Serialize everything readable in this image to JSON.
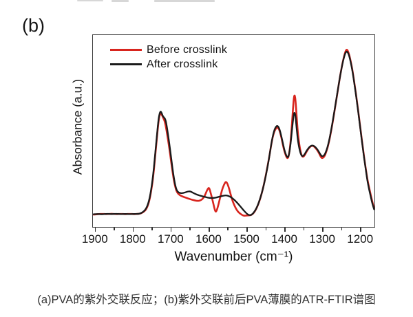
{
  "panel_label": "(b)",
  "caption": "(a)PVA的紫外交联反应；(b)紫外交联前后PVA薄膜的ATR-FTIR谱图",
  "colors": {
    "before_crosslink": "#d8251e",
    "after_crosslink": "#1a1a1a",
    "axis": "#3c3c3c"
  },
  "chart_data": {
    "type": "line",
    "title": "",
    "xlabel": "Wavenumber (cm⁻¹)",
    "ylabel": "Absorbance (a.u.)",
    "x_axis_reversed": true,
    "x_range": [
      1905,
      1164
    ],
    "ylim": [
      -0.075,
      1.087
    ],
    "grid": false,
    "legend_position": "top-left",
    "x_ticks": [
      1900,
      1800,
      1700,
      1600,
      1500,
      1400,
      1300,
      1200
    ],
    "x_minor_ticks": [
      1850,
      1750,
      1650,
      1550,
      1450,
      1350,
      1250
    ],
    "series": [
      {
        "name": "Before crosslink",
        "color": "#d8251e",
        "stroke_width": 2.6,
        "points": [
          [
            1903,
            0.0
          ],
          [
            1892,
            0.002
          ],
          [
            1880,
            0.004
          ],
          [
            1868,
            0.002
          ],
          [
            1856,
            0.005
          ],
          [
            1844,
            0.002
          ],
          [
            1832,
            0.004
          ],
          [
            1820,
            0.002
          ],
          [
            1808,
            0.004
          ],
          [
            1796,
            0.002
          ],
          [
            1788,
            0.004
          ],
          [
            1781,
            0.005
          ],
          [
            1773,
            0.013
          ],
          [
            1765,
            0.03
          ],
          [
            1758,
            0.068
          ],
          [
            1752,
            0.135
          ],
          [
            1747,
            0.215
          ],
          [
            1742,
            0.33
          ],
          [
            1737,
            0.455
          ],
          [
            1733,
            0.55
          ],
          [
            1730,
            0.6
          ],
          [
            1727,
            0.614
          ],
          [
            1724,
            0.606
          ],
          [
            1720,
            0.585
          ],
          [
            1716,
            0.565
          ],
          [
            1712,
            0.52
          ],
          [
            1707,
            0.45
          ],
          [
            1702,
            0.37
          ],
          [
            1697,
            0.285
          ],
          [
            1692,
            0.205
          ],
          [
            1687,
            0.155
          ],
          [
            1683,
            0.132
          ],
          [
            1678,
            0.12
          ],
          [
            1672,
            0.112
          ],
          [
            1665,
            0.106
          ],
          [
            1658,
            0.1
          ],
          [
            1650,
            0.094
          ],
          [
            1643,
            0.089
          ],
          [
            1636,
            0.085
          ],
          [
            1629,
            0.082
          ],
          [
            1622,
            0.085
          ],
          [
            1616,
            0.095
          ],
          [
            1611,
            0.112
          ],
          [
            1606,
            0.14
          ],
          [
            1602,
            0.158
          ],
          [
            1600,
            0.162
          ],
          [
            1598,
            0.155
          ],
          [
            1595,
            0.13
          ],
          [
            1591,
            0.095
          ],
          [
            1587,
            0.055
          ],
          [
            1584,
            0.027
          ],
          [
            1582,
            0.017
          ],
          [
            1580,
            0.02
          ],
          [
            1577,
            0.04
          ],
          [
            1573,
            0.075
          ],
          [
            1568,
            0.125
          ],
          [
            1563,
            0.165
          ],
          [
            1558,
            0.19
          ],
          [
            1555,
            0.199
          ],
          [
            1552,
            0.192
          ],
          [
            1548,
            0.168
          ],
          [
            1544,
            0.135
          ],
          [
            1540,
            0.1
          ],
          [
            1535,
            0.068
          ],
          [
            1530,
            0.042
          ],
          [
            1525,
            0.022
          ],
          [
            1519,
            0.008
          ],
          [
            1513,
            -0.002
          ],
          [
            1507,
            -0.008
          ],
          [
            1501,
            -0.006
          ],
          [
            1495,
            -0.005
          ],
          [
            1489,
            -0.004
          ],
          [
            1482,
            0.008
          ],
          [
            1474,
            0.038
          ],
          [
            1466,
            0.085
          ],
          [
            1458,
            0.15
          ],
          [
            1450,
            0.235
          ],
          [
            1442,
            0.333
          ],
          [
            1435,
            0.435
          ],
          [
            1429,
            0.495
          ],
          [
            1424,
            0.52
          ],
          [
            1419,
            0.53
          ],
          [
            1414,
            0.512
          ],
          [
            1409,
            0.468
          ],
          [
            1404,
            0.41
          ],
          [
            1399,
            0.368
          ],
          [
            1395,
            0.345
          ],
          [
            1392,
            0.34
          ],
          [
            1389,
            0.36
          ],
          [
            1385,
            0.43
          ],
          [
            1381,
            0.55
          ],
          [
            1378,
            0.655
          ],
          [
            1376,
            0.71
          ],
          [
            1374,
            0.726
          ],
          [
            1372,
            0.7
          ],
          [
            1369,
            0.6
          ],
          [
            1366,
            0.5
          ],
          [
            1362,
            0.425
          ],
          [
            1358,
            0.375
          ],
          [
            1354,
            0.348
          ],
          [
            1349,
            0.353
          ],
          [
            1343,
            0.38
          ],
          [
            1337,
            0.402
          ],
          [
            1331,
            0.415
          ],
          [
            1326,
            0.417
          ],
          [
            1321,
            0.408
          ],
          [
            1315,
            0.392
          ],
          [
            1309,
            0.368
          ],
          [
            1304,
            0.344
          ],
          [
            1300,
            0.341
          ],
          [
            1295,
            0.354
          ],
          [
            1290,
            0.385
          ],
          [
            1284,
            0.435
          ],
          [
            1278,
            0.505
          ],
          [
            1272,
            0.585
          ],
          [
            1266,
            0.672
          ],
          [
            1260,
            0.758
          ],
          [
            1254,
            0.845
          ],
          [
            1248,
            0.918
          ],
          [
            1243,
            0.968
          ],
          [
            1239,
            0.996
          ],
          [
            1236,
            1.0
          ],
          [
            1232,
            0.98
          ],
          [
            1228,
            0.945
          ],
          [
            1223,
            0.89
          ],
          [
            1218,
            0.815
          ],
          [
            1212,
            0.72
          ],
          [
            1206,
            0.615
          ],
          [
            1200,
            0.505
          ],
          [
            1194,
            0.395
          ],
          [
            1188,
            0.295
          ],
          [
            1183,
            0.218
          ],
          [
            1178,
            0.162
          ],
          [
            1173,
            0.112
          ],
          [
            1169,
            0.072
          ],
          [
            1165,
            0.04
          ]
        ]
      },
      {
        "name": "After crosslink",
        "color": "#1a1a1a",
        "stroke_width": 2.3,
        "points": [
          [
            1903,
            0.002
          ],
          [
            1892,
            0.004
          ],
          [
            1880,
            0.001
          ],
          [
            1868,
            0.005
          ],
          [
            1856,
            0.002
          ],
          [
            1844,
            0.005
          ],
          [
            1832,
            0.002
          ],
          [
            1820,
            0.004
          ],
          [
            1808,
            0.002
          ],
          [
            1796,
            0.004
          ],
          [
            1788,
            0.003
          ],
          [
            1781,
            0.006
          ],
          [
            1773,
            0.015
          ],
          [
            1765,
            0.035
          ],
          [
            1758,
            0.075
          ],
          [
            1752,
            0.145
          ],
          [
            1747,
            0.23
          ],
          [
            1742,
            0.345
          ],
          [
            1737,
            0.47
          ],
          [
            1733,
            0.565
          ],
          [
            1730,
            0.61
          ],
          [
            1727,
            0.627
          ],
          [
            1724,
            0.615
          ],
          [
            1721,
            0.596
          ],
          [
            1718,
            0.588
          ],
          [
            1714,
            0.576
          ],
          [
            1710,
            0.527
          ],
          [
            1705,
            0.45
          ],
          [
            1700,
            0.36
          ],
          [
            1695,
            0.27
          ],
          [
            1690,
            0.196
          ],
          [
            1686,
            0.156
          ],
          [
            1682,
            0.138
          ],
          [
            1677,
            0.131
          ],
          [
            1670,
            0.129
          ],
          [
            1663,
            0.133
          ],
          [
            1656,
            0.139
          ],
          [
            1650,
            0.141
          ],
          [
            1644,
            0.135
          ],
          [
            1637,
            0.126
          ],
          [
            1628,
            0.118
          ],
          [
            1618,
            0.111
          ],
          [
            1608,
            0.105
          ],
          [
            1598,
            0.1
          ],
          [
            1588,
            0.1
          ],
          [
            1578,
            0.104
          ],
          [
            1568,
            0.111
          ],
          [
            1560,
            0.115
          ],
          [
            1553,
            0.116
          ],
          [
            1546,
            0.111
          ],
          [
            1538,
            0.099
          ],
          [
            1529,
            0.081
          ],
          [
            1519,
            0.055
          ],
          [
            1509,
            0.027
          ],
          [
            1500,
            0.005
          ],
          [
            1494,
            -0.004
          ],
          [
            1488,
            -0.003
          ],
          [
            1481,
            0.013
          ],
          [
            1473,
            0.045
          ],
          [
            1465,
            0.095
          ],
          [
            1457,
            0.16
          ],
          [
            1449,
            0.245
          ],
          [
            1441,
            0.345
          ],
          [
            1434,
            0.45
          ],
          [
            1428,
            0.51
          ],
          [
            1423,
            0.533
          ],
          [
            1419,
            0.539
          ],
          [
            1414,
            0.52
          ],
          [
            1409,
            0.475
          ],
          [
            1404,
            0.42
          ],
          [
            1399,
            0.375
          ],
          [
            1395,
            0.352
          ],
          [
            1392,
            0.345
          ],
          [
            1389,
            0.36
          ],
          [
            1385,
            0.42
          ],
          [
            1381,
            0.51
          ],
          [
            1378,
            0.578
          ],
          [
            1376,
            0.612
          ],
          [
            1374,
            0.618
          ],
          [
            1372,
            0.6
          ],
          [
            1369,
            0.525
          ],
          [
            1366,
            0.455
          ],
          [
            1362,
            0.4
          ],
          [
            1358,
            0.365
          ],
          [
            1354,
            0.352
          ],
          [
            1349,
            0.36
          ],
          [
            1343,
            0.385
          ],
          [
            1337,
            0.405
          ],
          [
            1331,
            0.417
          ],
          [
            1326,
            0.419
          ],
          [
            1321,
            0.412
          ],
          [
            1315,
            0.398
          ],
          [
            1309,
            0.375
          ],
          [
            1304,
            0.356
          ],
          [
            1300,
            0.352
          ],
          [
            1295,
            0.362
          ],
          [
            1290,
            0.39
          ],
          [
            1284,
            0.44
          ],
          [
            1278,
            0.51
          ],
          [
            1272,
            0.59
          ],
          [
            1266,
            0.675
          ],
          [
            1260,
            0.76
          ],
          [
            1254,
            0.845
          ],
          [
            1248,
            0.915
          ],
          [
            1243,
            0.963
          ],
          [
            1239,
            0.985
          ],
          [
            1236,
            0.988
          ],
          [
            1232,
            0.972
          ],
          [
            1228,
            0.938
          ],
          [
            1223,
            0.885
          ],
          [
            1218,
            0.81
          ],
          [
            1212,
            0.715
          ],
          [
            1206,
            0.61
          ],
          [
            1200,
            0.5
          ],
          [
            1194,
            0.39
          ],
          [
            1188,
            0.29
          ],
          [
            1183,
            0.21
          ],
          [
            1178,
            0.15
          ],
          [
            1173,
            0.1
          ],
          [
            1169,
            0.062
          ],
          [
            1165,
            0.032
          ]
        ]
      }
    ]
  }
}
